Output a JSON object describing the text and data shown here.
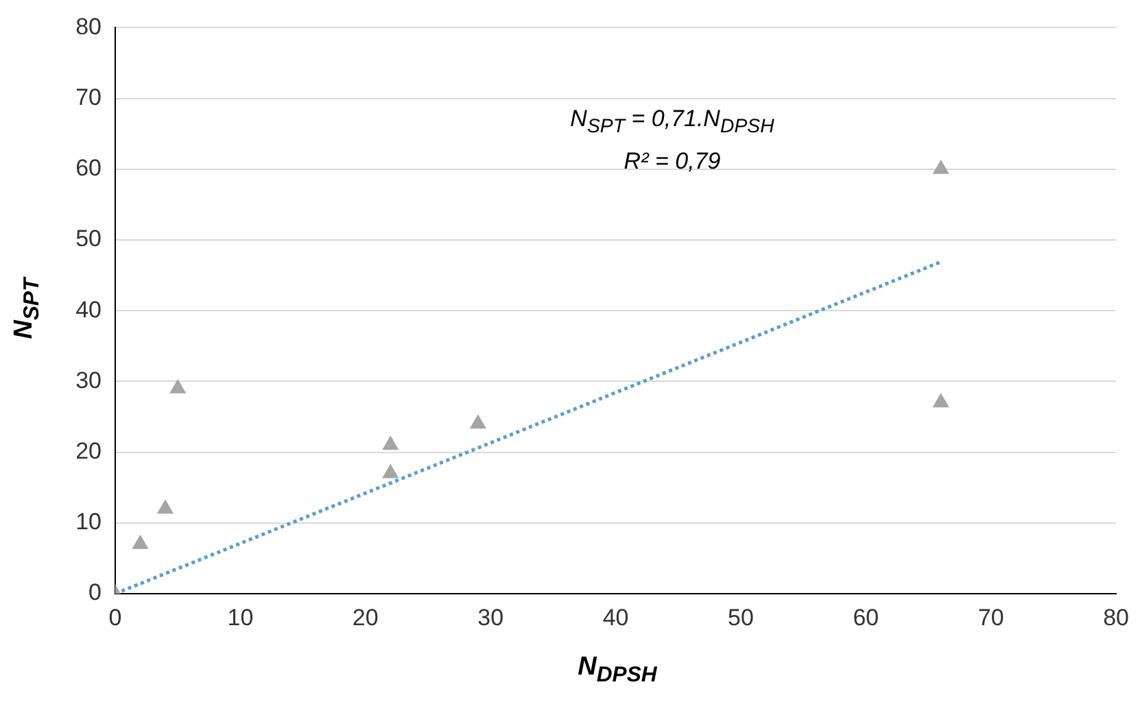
{
  "chart_data": {
    "type": "scatter",
    "xlabel": "N$_{DPSH}$",
    "ylabel": "N$_{SPT}$",
    "annotations": [
      "N$_{SPT}$ = 0,71.N$_{DPSH}$",
      "R² = 0,79"
    ],
    "xlim": [
      0,
      80
    ],
    "xticks": [
      0,
      10,
      20,
      30,
      40,
      50,
      60,
      70,
      80
    ],
    "ylim": [
      0,
      80
    ],
    "yticks": [
      0,
      10,
      20,
      30,
      40,
      50,
      60,
      70,
      80
    ],
    "grid": "y",
    "marker": "triangle",
    "series": [
      {
        "color": "#a5a5a5",
        "x": [
          0,
          2,
          4,
          5,
          22,
          22,
          29,
          66,
          66
        ],
        "values": [
          0,
          7,
          12,
          29,
          21,
          17,
          24,
          60,
          27
        ]
      },
      {
        "type": "line",
        "color": "#5b9bd5",
        "line_style": "dotted",
        "marker": "none",
        "x": [
          0,
          66
        ],
        "values": [
          0,
          46.9
        ]
      }
    ]
  }
}
